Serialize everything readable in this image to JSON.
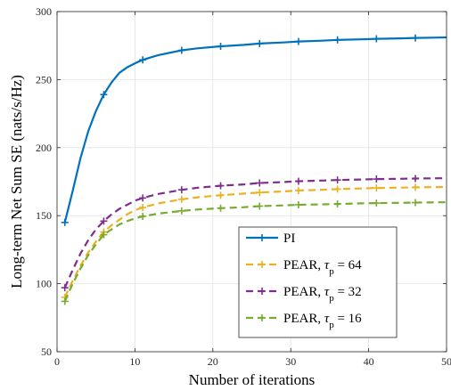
{
  "chart_data": {
    "type": "line",
    "xlabel": "Number of iterations",
    "ylabel": "Long-term Net Sum SE (nats/s/Hz)",
    "xlim": [
      0,
      50
    ],
    "ylim": [
      50,
      300
    ],
    "xticks": [
      0,
      10,
      20,
      30,
      40,
      50
    ],
    "yticks": [
      50,
      100,
      150,
      200,
      250,
      300
    ],
    "grid": true,
    "legend_position": "lower-right",
    "series": [
      {
        "name": "PI",
        "legend": {
          "prefix": "PI",
          "tau": "",
          "sub": "",
          "suffix": ""
        },
        "color": "#0072BD",
        "dash": "solid",
        "x": [
          1,
          2,
          3,
          4,
          5,
          6,
          7,
          8,
          9,
          10,
          11,
          13,
          16,
          18,
          21,
          24,
          26,
          29,
          31,
          34,
          36,
          39,
          41,
          44,
          46,
          49,
          50
        ],
        "y": [
          145,
          168,
          192,
          212,
          227,
          239,
          248,
          255,
          259,
          262,
          264.5,
          268,
          271.5,
          273,
          274.5,
          275.5,
          276.5,
          277.3,
          278,
          278.6,
          279.2,
          279.6,
          280,
          280.3,
          280.6,
          280.9,
          281
        ],
        "marker_x": [
          1,
          6,
          11,
          16,
          21,
          26,
          31,
          36,
          41,
          46
        ]
      },
      {
        "name": "PEAR, τp = 64",
        "legend": {
          "prefix": "PEAR, ",
          "tau": "τ",
          "sub": "p",
          "suffix": " = 64"
        },
        "color": "#EDB120",
        "dash": "dashed",
        "x": [
          1,
          2,
          3,
          4,
          5,
          6,
          7,
          8,
          9,
          10,
          11,
          13,
          16,
          18,
          21,
          24,
          26,
          29,
          31,
          34,
          36,
          39,
          41,
          44,
          46,
          49,
          50
        ],
        "y": [
          90,
          102,
          113,
          123,
          131,
          138,
          143,
          147,
          151,
          154,
          156,
          159,
          162,
          163.5,
          165,
          166.2,
          167,
          167.8,
          168.5,
          169,
          169.5,
          170,
          170.3,
          170.6,
          170.8,
          171,
          171
        ],
        "marker_x": [
          1,
          6,
          11,
          16,
          21,
          26,
          31,
          36,
          41,
          46
        ]
      },
      {
        "name": "PEAR, τp = 32",
        "legend": {
          "prefix": "PEAR, ",
          "tau": "τ",
          "sub": "p",
          "suffix": " = 32"
        },
        "color": "#7E2F8E",
        "dash": "dashed",
        "x": [
          1,
          2,
          3,
          4,
          5,
          6,
          7,
          8,
          9,
          10,
          11,
          13,
          16,
          18,
          21,
          24,
          26,
          29,
          31,
          34,
          36,
          39,
          41,
          44,
          46,
          49,
          50
        ],
        "y": [
          97,
          110,
          122,
          132,
          140,
          146,
          151,
          155,
          158,
          161,
          163,
          166,
          169,
          170.5,
          172,
          173,
          174,
          174.7,
          175.3,
          175.8,
          176.2,
          176.6,
          176.9,
          177.1,
          177.3,
          177.5,
          177.5
        ],
        "marker_x": [
          1,
          6,
          11,
          16,
          21,
          26,
          31,
          36,
          41,
          46
        ]
      },
      {
        "name": "PEAR, τp = 16",
        "legend": {
          "prefix": "PEAR, ",
          "tau": "τ",
          "sub": "p",
          "suffix": " = 16"
        },
        "color": "#77AC30",
        "dash": "dashed",
        "x": [
          1,
          2,
          3,
          4,
          5,
          6,
          7,
          8,
          9,
          10,
          11,
          13,
          16,
          18,
          21,
          24,
          26,
          29,
          31,
          34,
          36,
          39,
          41,
          44,
          46,
          49,
          50
        ],
        "y": [
          87,
          100,
          111,
          121,
          129,
          136,
          140,
          143.5,
          146,
          148,
          149.5,
          151.5,
          153.5,
          154.5,
          155.5,
          156.2,
          157,
          157.5,
          158,
          158.3,
          158.6,
          159,
          159.2,
          159.4,
          159.6,
          159.8,
          159.8
        ],
        "marker_x": [
          1,
          6,
          11,
          16,
          21,
          26,
          31,
          36,
          41,
          46
        ]
      }
    ]
  }
}
